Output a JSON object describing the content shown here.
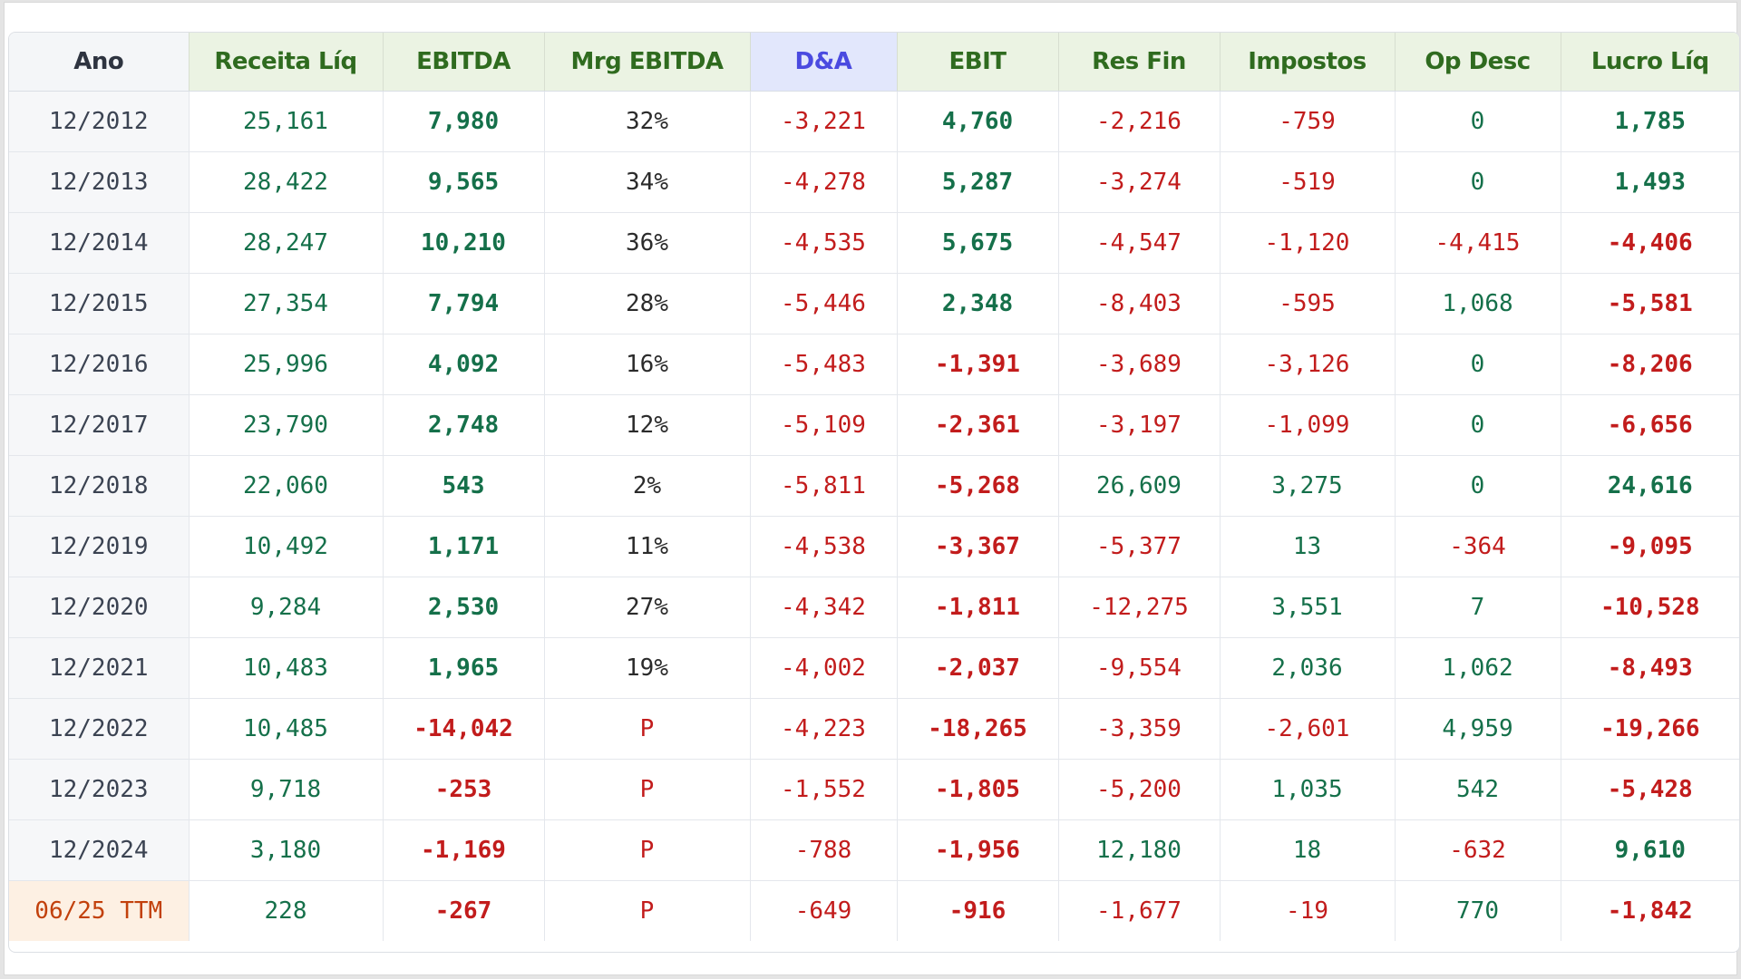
{
  "colors": {
    "positive": "#15704a",
    "negative": "#c21c1c",
    "header_bg": "#ebf3e3",
    "header_text": "#2f6b1f",
    "da_header_bg": "#e2e7fc",
    "da_header_text": "#4a4ae0",
    "ttm_bg": "#fdf0e3",
    "ttm_text": "#c2410c"
  },
  "table": {
    "headers": [
      "Ano",
      "Receita Líq",
      "EBITDA",
      "Mrg EBITDA",
      "D&A",
      "EBIT",
      "Res Fin",
      "Impostos",
      "Op Desc",
      "Lucro Líq"
    ],
    "rows": [
      [
        "12/2012",
        "25,161",
        "7,980",
        "32%",
        "-3,221",
        "4,760",
        "-2,216",
        "-759",
        "0",
        "1,785"
      ],
      [
        "12/2013",
        "28,422",
        "9,565",
        "34%",
        "-4,278",
        "5,287",
        "-3,274",
        "-519",
        "0",
        "1,493"
      ],
      [
        "12/2014",
        "28,247",
        "10,210",
        "36%",
        "-4,535",
        "5,675",
        "-4,547",
        "-1,120",
        "-4,415",
        "-4,406"
      ],
      [
        "12/2015",
        "27,354",
        "7,794",
        "28%",
        "-5,446",
        "2,348",
        "-8,403",
        "-595",
        "1,068",
        "-5,581"
      ],
      [
        "12/2016",
        "25,996",
        "4,092",
        "16%",
        "-5,483",
        "-1,391",
        "-3,689",
        "-3,126",
        "0",
        "-8,206"
      ],
      [
        "12/2017",
        "23,790",
        "2,748",
        "12%",
        "-5,109",
        "-2,361",
        "-3,197",
        "-1,099",
        "0",
        "-6,656"
      ],
      [
        "12/2018",
        "22,060",
        "543",
        "2%",
        "-5,811",
        "-5,268",
        "26,609",
        "3,275",
        "0",
        "24,616"
      ],
      [
        "12/2019",
        "10,492",
        "1,171",
        "11%",
        "-4,538",
        "-3,367",
        "-5,377",
        "13",
        "-364",
        "-9,095"
      ],
      [
        "12/2020",
        "9,284",
        "2,530",
        "27%",
        "-4,342",
        "-1,811",
        "-12,275",
        "3,551",
        "7",
        "-10,528"
      ],
      [
        "12/2021",
        "10,483",
        "1,965",
        "19%",
        "-4,002",
        "-2,037",
        "-9,554",
        "2,036",
        "1,062",
        "-8,493"
      ],
      [
        "12/2022",
        "10,485",
        "-14,042",
        "P",
        "-4,223",
        "-18,265",
        "-3,359",
        "-2,601",
        "4,959",
        "-19,266"
      ],
      [
        "12/2023",
        "9,718",
        "-253",
        "P",
        "-1,552",
        "-1,805",
        "-5,200",
        "1,035",
        "542",
        "-5,428"
      ],
      [
        "12/2024",
        "3,180",
        "-1,169",
        "P",
        "-788",
        "-1,956",
        "12,180",
        "18",
        "-632",
        "9,610"
      ],
      [
        "06/25 TTM",
        "228",
        "-267",
        "P",
        "-649",
        "-916",
        "-1,677",
        "-19",
        "770",
        "-1,842"
      ]
    ]
  }
}
